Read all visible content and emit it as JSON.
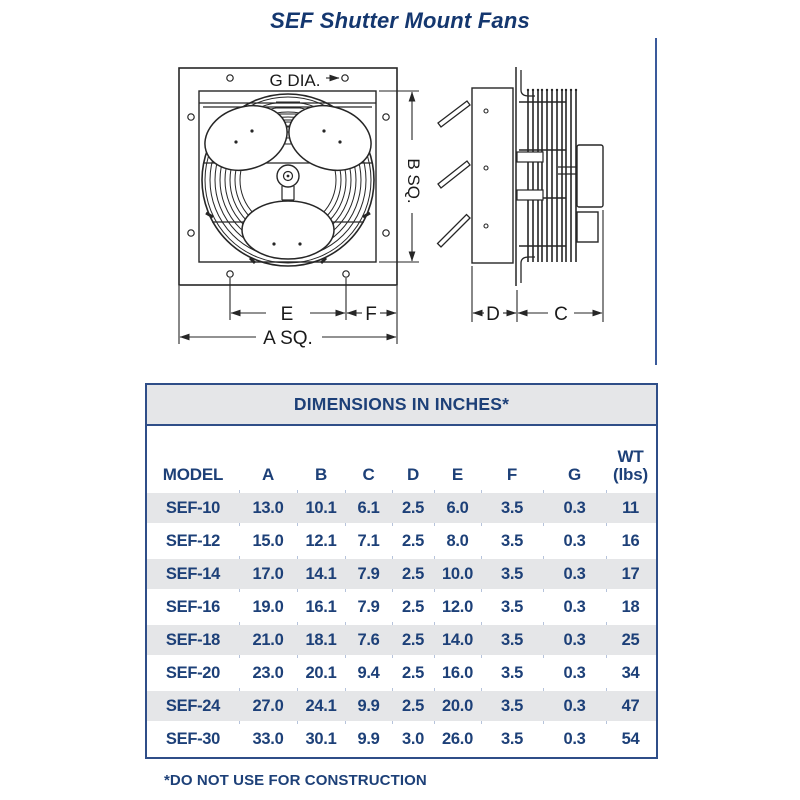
{
  "title": "SEF Shutter Mount Fans",
  "diagram": {
    "front": {
      "g_dia": "G DIA.",
      "b_sq": "B SQ.",
      "e": "E",
      "f": "F",
      "a_sq": "A SQ."
    },
    "side": {
      "d": "D",
      "c": "C"
    }
  },
  "table": {
    "title": "DIMENSIONS IN INCHES*",
    "columns": [
      "MODEL",
      "A",
      "B",
      "C",
      "D",
      "E",
      "F",
      "G",
      "WT\n(lbs)"
    ],
    "rows": [
      [
        "SEF-10",
        "13.0",
        "10.1",
        "6.1",
        "2.5",
        "6.0",
        "3.5",
        "0.3",
        "11"
      ],
      [
        "SEF-12",
        "15.0",
        "12.1",
        "7.1",
        "2.5",
        "8.0",
        "3.5",
        "0.3",
        "16"
      ],
      [
        "SEF-14",
        "17.0",
        "14.1",
        "7.9",
        "2.5",
        "10.0",
        "3.5",
        "0.3",
        "17"
      ],
      [
        "SEF-16",
        "19.0",
        "16.1",
        "7.9",
        "2.5",
        "12.0",
        "3.5",
        "0.3",
        "18"
      ],
      [
        "SEF-18",
        "21.0",
        "18.1",
        "7.6",
        "2.5",
        "14.0",
        "3.5",
        "0.3",
        "25"
      ],
      [
        "SEF-20",
        "23.0",
        "20.1",
        "9.4",
        "2.5",
        "16.0",
        "3.5",
        "0.3",
        "34"
      ],
      [
        "SEF-24",
        "27.0",
        "24.1",
        "9.9",
        "2.5",
        "20.0",
        "3.5",
        "0.3",
        "47"
      ],
      [
        "SEF-30",
        "33.0",
        "30.1",
        "9.9",
        "3.0",
        "26.0",
        "3.5",
        "0.3",
        "54"
      ]
    ]
  },
  "footnote": "*DO NOT USE FOR CONSTRUCTION",
  "colors": {
    "navy_text": "#1d4078",
    "table_border": "#2f4e88",
    "row_gray": "#e5e6e8",
    "grid_tick": "#b6c3db",
    "divider_blue": "#3a5a9b",
    "drawing_line": "#262626"
  }
}
